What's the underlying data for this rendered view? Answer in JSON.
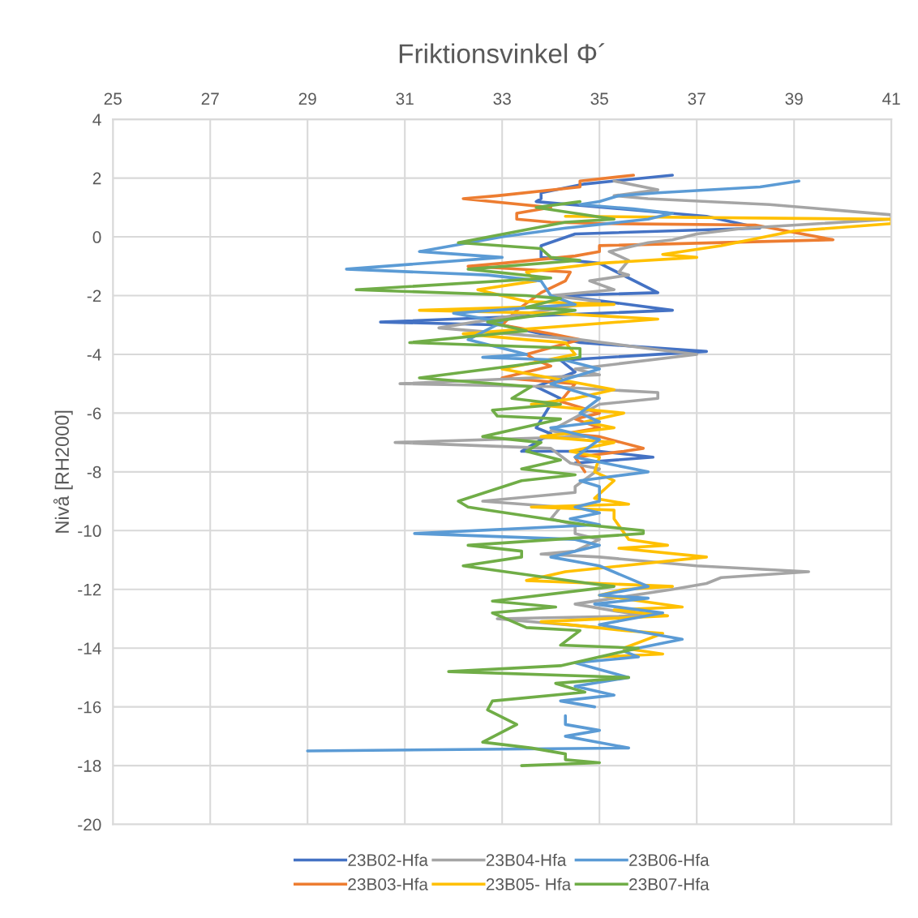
{
  "chart_data": {
    "type": "line",
    "title": "Friktionsvinkel Φ´",
    "ylabel": "Nivå [RH2000]",
    "xlim": [
      25,
      41
    ],
    "xticks": [
      25,
      27,
      29,
      31,
      33,
      35,
      37,
      39,
      41
    ],
    "ylim": [
      -20,
      4
    ],
    "yticks": [
      -20,
      -18,
      -16,
      -14,
      -12,
      -10,
      -8,
      -6,
      -4,
      -2,
      0,
      2,
      4
    ],
    "grid": true,
    "legend": "bottom",
    "marker": "none",
    "line_style": "solid",
    "series": [
      {
        "name": "23B02-Hfa",
        "color": "#4472c4",
        "x": [
          36.5,
          34.7,
          33.8,
          33.8,
          33.7,
          37.2,
          38.3,
          34.5,
          33.8,
          33.8,
          35.0,
          36.2,
          34.2,
          36.5,
          30.5,
          33.0,
          34.6,
          37.2,
          34.2,
          34.5,
          33.7,
          34.2,
          34.0,
          33.7,
          34.0,
          33.4,
          35.0,
          36.1,
          34.5
        ],
        "values": [
          2.1,
          1.8,
          1.5,
          1.3,
          1.2,
          0.7,
          0.3,
          0.1,
          -0.3,
          -0.7,
          -0.9,
          -1.9,
          -2.0,
          -2.5,
          -2.9,
          -3.0,
          -3.6,
          -3.9,
          -4.2,
          -4.6,
          -5.1,
          -5.5,
          -5.7,
          -6.5,
          -6.7,
          -7.3,
          -7.3,
          -7.5,
          -7.7
        ]
      },
      {
        "name": "23B03-Hfa",
        "color": "#ed7d31",
        "x": [
          35.7,
          34.6,
          34.6,
          32.9,
          32.2,
          34.0,
          33.3,
          33.3,
          34.0,
          35.2,
          38.2,
          39.8,
          35.0,
          35.0,
          34.5,
          33.0,
          32.3,
          34.4,
          34.3,
          33.8,
          33.3,
          33.0,
          34.0,
          34.6,
          33.5,
          33.7,
          34.0,
          33.0,
          34.5,
          34.2,
          35.0,
          34.5,
          35.0,
          34.3,
          35.0,
          35.9,
          35.5,
          34.5,
          34.7
        ],
        "values": [
          2.1,
          1.9,
          1.7,
          1.4,
          1.3,
          1.0,
          0.8,
          0.6,
          0.5,
          0.45,
          0.4,
          -0.1,
          -0.3,
          -0.5,
          -0.65,
          -0.9,
          -1.0,
          -1.2,
          -1.5,
          -1.9,
          -2.5,
          -3.0,
          -3.3,
          -3.5,
          -4.0,
          -4.2,
          -4.4,
          -4.8,
          -5.0,
          -5.6,
          -6.0,
          -6.2,
          -6.5,
          -6.7,
          -6.8,
          -7.2,
          -7.3,
          -7.5,
          -8.0
        ]
      },
      {
        "name": "23B04-Hfa",
        "color": "#a5a5a5",
        "x": [
          35.3,
          36.2,
          35.3,
          36.0,
          38.5,
          41.0,
          41.0,
          38.0,
          37.0,
          36.5,
          36.0,
          35.2,
          35.6,
          35.4,
          35.6,
          34.8,
          35.3,
          34.0,
          35.0,
          31.7,
          34.6,
          36.0,
          37.0,
          34.5,
          35.0,
          30.9,
          34.0,
          36.2,
          36.2,
          35.0,
          34.0,
          34.7,
          30.8,
          34.0,
          34.4,
          35.0,
          34.5,
          34.5,
          32.6,
          34.2,
          34.0,
          34.5,
          34.5,
          35.0,
          34.5,
          33.8,
          35.0,
          37.0,
          39.3,
          37.5,
          37.2,
          36.5,
          34.5,
          35.9,
          32.9,
          35.0
        ],
        "values": [
          1.9,
          1.6,
          1.4,
          1.3,
          1.1,
          0.75,
          0.6,
          0.3,
          0.1,
          -0.1,
          -0.2,
          -0.5,
          -0.8,
          -1.2,
          -1.3,
          -1.5,
          -1.8,
          -2.0,
          -2.2,
          -3.1,
          -3.5,
          -3.8,
          -4.0,
          -4.5,
          -4.7,
          -5.0,
          -5.1,
          -5.3,
          -5.5,
          -5.7,
          -6.6,
          -6.8,
          -7.0,
          -7.2,
          -7.7,
          -7.9,
          -8.5,
          -8.7,
          -9.0,
          -9.2,
          -9.6,
          -9.8,
          -10.1,
          -10.3,
          -10.7,
          -10.8,
          -10.9,
          -11.2,
          -11.4,
          -11.6,
          -11.8,
          -12.0,
          -12.5,
          -12.9,
          -13.0,
          -13.3
        ]
      },
      {
        "name": "23B05- Hfa",
        "color": "#ffc000",
        "x": [
          34.3,
          41.0,
          41.0,
          39.0,
          37.5,
          36.3,
          37.0,
          35.0,
          33.5,
          33.7,
          32.5,
          33.5,
          35.3,
          31.3,
          34.0,
          36.2,
          32.2,
          33.5,
          34.3,
          34.5,
          33.0,
          35.3,
          34.5,
          33.6,
          35.5,
          34.7,
          35.3,
          33.8,
          35.3,
          34.4,
          35.0,
          34.9,
          35.3,
          34.9,
          35.6,
          33.6,
          35.3,
          35.3,
          35.6,
          36.4,
          35.4,
          37.2,
          34.3,
          33.5,
          36.5,
          35.5,
          35.0,
          36.7,
          35.3,
          36.4,
          33.8,
          35.5,
          36.3,
          35.5,
          36.3,
          35.0
        ],
        "values": [
          0.7,
          0.6,
          0.45,
          0.2,
          -0.3,
          -0.6,
          -0.7,
          -0.9,
          -1.2,
          -1.5,
          -1.8,
          -2.2,
          -2.3,
          -2.5,
          -2.6,
          -2.8,
          -3.3,
          -3.5,
          -3.6,
          -4.0,
          -4.5,
          -5.2,
          -5.5,
          -5.7,
          -6.0,
          -6.3,
          -6.5,
          -6.8,
          -7.0,
          -7.3,
          -7.5,
          -8.0,
          -8.3,
          -8.9,
          -9.1,
          -9.2,
          -9.3,
          -9.6,
          -10.3,
          -10.5,
          -10.6,
          -10.9,
          -11.4,
          -11.7,
          -11.9,
          -12.0,
          -12.2,
          -12.6,
          -12.7,
          -12.9,
          -13.1,
          -13.4,
          -13.5,
          -14.0,
          -14.2,
          -14.3
        ]
      },
      {
        "name": "23B06-Hfa",
        "color": "#5b9bd5",
        "x": [
          39.1,
          38.3,
          36.2,
          35.4,
          35.0,
          34.6,
          35.7,
          36.5,
          36.0,
          34.3,
          33.0,
          31.3,
          33.0,
          29.8,
          32.7,
          33.8,
          34.0,
          34.5,
          32.0,
          33.0,
          32.3,
          33.5,
          32.6,
          34.3,
          35.0,
          34.0,
          35.0,
          34.6,
          35.0,
          34.0,
          35.0,
          34.5,
          36.0,
          34.6,
          35.0,
          35.0,
          34.5,
          35.0,
          34.4,
          35.0,
          31.2,
          34.5,
          35.0,
          34.0,
          35.0,
          36.0,
          35.0,
          36.0,
          34.9,
          36.3,
          35.0,
          36.7,
          35.5,
          35.8,
          34.5,
          35.6,
          34.5,
          35.3,
          34.2,
          34.9,
          null,
          34.3,
          34.3,
          35.0,
          34.3,
          35.6,
          29.0
        ],
        "values": [
          1.9,
          1.7,
          1.5,
          1.4,
          1.2,
          1.1,
          0.95,
          0.8,
          0.6,
          0.3,
          0.0,
          -0.5,
          -0.7,
          -1.1,
          -1.3,
          -1.5,
          -2.0,
          -2.3,
          -2.6,
          -2.9,
          -3.5,
          -4.0,
          -4.1,
          -4.2,
          -4.5,
          -5.0,
          -5.5,
          -6.0,
          -6.3,
          -6.5,
          -6.9,
          -7.5,
          -8.0,
          -8.3,
          -8.5,
          -9.0,
          -9.2,
          -9.4,
          -9.6,
          -9.8,
          -10.1,
          -10.3,
          -10.5,
          -10.9,
          -11.2,
          -11.9,
          -12.2,
          -12.3,
          -12.5,
          -12.8,
          -13.2,
          -13.7,
          -14.1,
          -14.3,
          -14.5,
          -15.0,
          -15.3,
          -15.6,
          -15.8,
          -16.0,
          null,
          -16.3,
          -16.6,
          -16.8,
          -17.0,
          -17.4,
          -17.5
        ]
      },
      {
        "name": "23B07-Hfa",
        "color": "#70ad47",
        "x": [
          34.6,
          33.7,
          35.3,
          34.3,
          32.1,
          33.8,
          34.0,
          34.6,
          32.3,
          34.0,
          30.0,
          33.5,
          34.2,
          33.5,
          34.5,
          32.7,
          33.5,
          31.1,
          34.6,
          34.6,
          31.3,
          33.6,
          33.2,
          34.2,
          32.8,
          32.9,
          34.2,
          33.4,
          32.6,
          33.8,
          33.5,
          34.2,
          33.4,
          34.5,
          33.4,
          32.1,
          32.3,
          32.7,
          34.7,
          35.9,
          35.9,
          32.3,
          33.4,
          33.4,
          32.2,
          34.8,
          35.3,
          32.8,
          34.1,
          32.8,
          33.5,
          34.6,
          34.2,
          35.8,
          34.2,
          31.9,
          35.6,
          34.1,
          34.7,
          32.8,
          32.7,
          33.3,
          32.6,
          33.6,
          34.3,
          34.3,
          35.0,
          33.4
        ],
        "values": [
          1.2,
          1.0,
          0.6,
          0.5,
          -0.2,
          -0.4,
          -0.7,
          -0.8,
          -1.1,
          -1.4,
          -1.8,
          -2.0,
          -2.1,
          -2.4,
          -2.5,
          -2.9,
          -3.2,
          -3.6,
          -3.8,
          -4.1,
          -4.8,
          -5.1,
          -5.5,
          -5.7,
          -5.9,
          -6.1,
          -6.2,
          -6.5,
          -6.8,
          -7.0,
          -7.3,
          -7.6,
          -7.9,
          -8.1,
          -8.3,
          -9.0,
          -9.2,
          -9.3,
          -9.8,
          -10.0,
          -10.1,
          -10.5,
          -10.7,
          -10.9,
          -11.2,
          -11.8,
          -11.9,
          -12.4,
          -12.6,
          -12.8,
          -13.3,
          -13.4,
          -13.9,
          -14.0,
          -14.6,
          -14.8,
          -15.0,
          -15.2,
          -15.5,
          -15.8,
          -16.1,
          -16.6,
          -17.2,
          -17.4,
          -17.6,
          -17.8,
          -17.9,
          -18.0
        ]
      }
    ]
  }
}
